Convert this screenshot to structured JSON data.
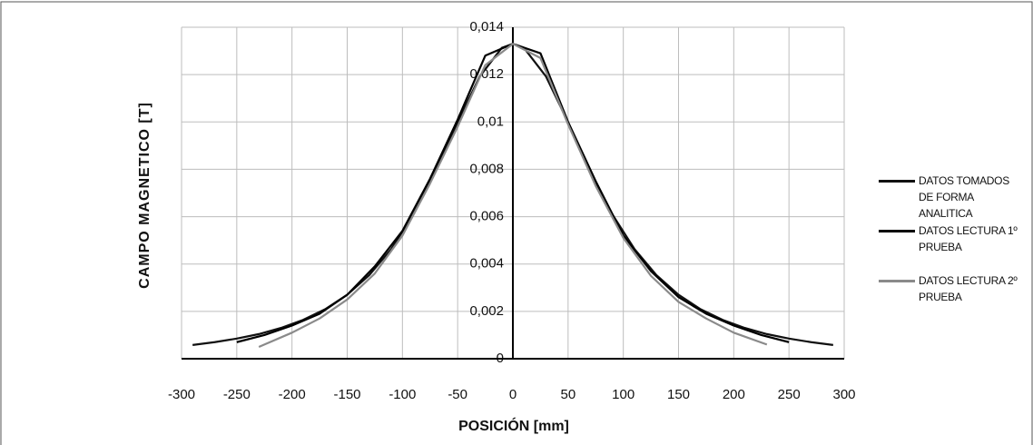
{
  "chart_data": {
    "type": "line",
    "xlabel": "POSICIÓN [mm]",
    "ylabel": "CAMPO MAGNETICO [T]",
    "xlim": [
      -300,
      300
    ],
    "xticks": [
      -300,
      -250,
      -200,
      -150,
      -100,
      -50,
      0,
      50,
      100,
      150,
      200,
      250,
      300
    ],
    "ylim": [
      0,
      0.014
    ],
    "yticks": [
      0,
      {
        "value": 0.002,
        "label": "0,002"
      },
      {
        "value": 0.004,
        "label": "0,004"
      },
      {
        "value": 0.006,
        "label": "0,006"
      },
      {
        "value": 0.008,
        "label": "0,008"
      },
      {
        "value": 0.01,
        "label": "0,01"
      },
      {
        "value": 0.012,
        "label": "0,012"
      },
      {
        "value": 0.014,
        "label": "0,014"
      }
    ],
    "grid": true,
    "legend": "right",
    "series": [
      {
        "name": "DATOS TOMADOS DE FORMA ANALITICA",
        "color": "#111111",
        "x": [
          -290,
          -270,
          -250,
          -230,
          -210,
          -190,
          -170,
          -150,
          -130,
          -110,
          -90,
          -70,
          -50,
          -30,
          -10,
          0,
          10,
          30,
          50,
          70,
          90,
          110,
          130,
          150,
          170,
          190,
          210,
          230,
          250,
          270,
          290
        ],
        "values": [
          0.00058,
          0.0007,
          0.00085,
          0.00104,
          0.0013,
          0.00164,
          0.00209,
          0.0027,
          0.00353,
          0.00464,
          0.0061,
          0.00792,
          0.00999,
          0.01192,
          0.01313,
          0.0133,
          0.01313,
          0.01192,
          0.00999,
          0.00792,
          0.0061,
          0.00464,
          0.00353,
          0.0027,
          0.00209,
          0.00164,
          0.0013,
          0.00104,
          0.00085,
          0.0007,
          0.00058
        ]
      },
      {
        "name": "DATOS LECTURA 1º PRUEBA",
        "color": "#000000",
        "x": [
          -250,
          -225,
          -200,
          -175,
          -150,
          -125,
          -100,
          -75,
          -50,
          -25,
          0,
          25,
          50,
          75,
          100,
          125,
          150,
          175,
          200,
          225,
          250
        ],
        "values": [
          0.0007,
          0.001,
          0.0014,
          0.0019,
          0.0027,
          0.0039,
          0.0054,
          0.0076,
          0.0101,
          0.0128,
          0.0133,
          0.0129,
          0.01,
          0.0075,
          0.0052,
          0.0037,
          0.0026,
          0.0019,
          0.0014,
          0.001,
          0.0007
        ]
      },
      {
        "name": "DATOS LECTURA 2º PRUEBA",
        "color": "#8a8a8a",
        "x": [
          -230,
          -200,
          -175,
          -150,
          -125,
          -100,
          -75,
          -50,
          -25,
          0,
          25,
          50,
          75,
          100,
          125,
          150,
          175,
          200,
          230
        ],
        "values": [
          0.0005,
          0.0011,
          0.0017,
          0.0025,
          0.0036,
          0.0052,
          0.0074,
          0.0098,
          0.0124,
          0.0133,
          0.0127,
          0.0099,
          0.0073,
          0.0051,
          0.0035,
          0.0024,
          0.0017,
          0.0011,
          0.0006
        ]
      }
    ]
  }
}
